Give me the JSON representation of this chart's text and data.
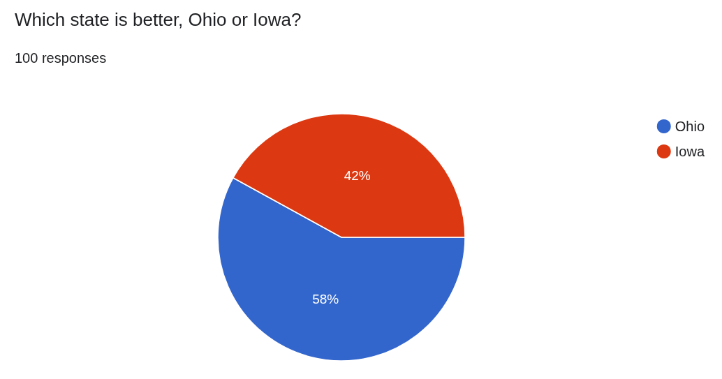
{
  "chart_data": {
    "type": "pie",
    "title": "Which state is better, Ohio or Iowa?",
    "subtitle": "100 responses",
    "categories": [
      "Ohio",
      "Iowa"
    ],
    "values": [
      58,
      42
    ],
    "colors": [
      "#3366cc",
      "#dc3912"
    ],
    "value_labels": [
      "58%",
      "42%"
    ],
    "legend": "top right"
  }
}
